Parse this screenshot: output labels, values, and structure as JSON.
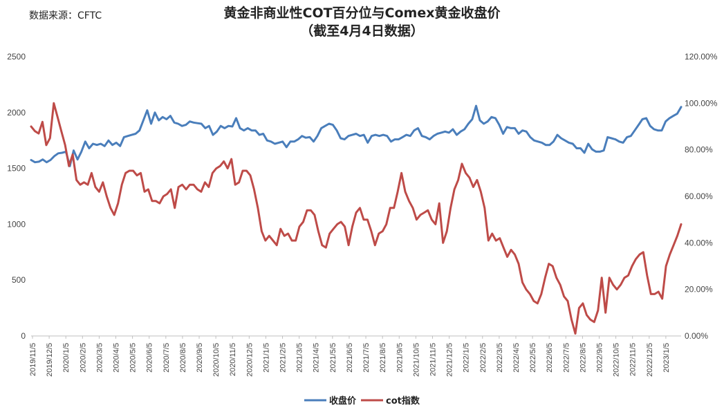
{
  "source": "数据来源：CFTC",
  "title_line1": "黄金非商业性COT百分位与Comex黄金收盘价",
  "title_line2": "（截至4月4日数据）",
  "chart_data": {
    "type": "line",
    "title": "黄金非商业性COT百分位与Comex黄金收盘价",
    "subtitle": "（截至4月4日数据）",
    "y_left": {
      "min": 0,
      "max": 2500,
      "ticks": [
        0,
        500,
        1000,
        1500,
        2000,
        2500
      ]
    },
    "y_right": {
      "min": 0,
      "max": 1.2,
      "ticks": [
        "0.00%",
        "20.00%",
        "40.00%",
        "60.00%",
        "80.00%",
        "100.00%",
        "120.00%"
      ]
    },
    "x_ticks": [
      "2019/11/5",
      "2019/12/5",
      "2020/1/5",
      "2020/2/5",
      "2020/3/5",
      "2020/4/5",
      "2020/5/5",
      "2020/6/5",
      "2020/7/5",
      "2020/8/5",
      "2020/9/5",
      "2020/10/5",
      "2020/11/5",
      "2020/12/5",
      "2021/1/5",
      "2021/2/5",
      "2021/3/5",
      "2021/4/5",
      "2021/5/5",
      "2021/6/5",
      "2021/7/5",
      "2021/8/5",
      "2021/9/5",
      "2021/10/5",
      "2021/11/5",
      "2021/12/5",
      "2022/1/5",
      "2022/2/5",
      "2022/3/5",
      "2022/4/5",
      "2022/5/5",
      "2022/6/5",
      "2022/7/5",
      "2022/8/5",
      "2022/9/5",
      "2022/10/5",
      "2022/11/5",
      "2022/12/5",
      "2023/1/5"
    ],
    "grid": false,
    "legend_position": "bottom",
    "colors": {
      "price": "#4a7ebb",
      "cot": "#be4b48"
    },
    "series": [
      {
        "name": "收盘价",
        "axis": "left",
        "values": [
          1575,
          1555,
          1560,
          1580,
          1555,
          1575,
          1610,
          1635,
          1640,
          1650,
          1520,
          1660,
          1580,
          1650,
          1740,
          1680,
          1720,
          1710,
          1720,
          1700,
          1750,
          1710,
          1730,
          1700,
          1780,
          1790,
          1800,
          1810,
          1840,
          1930,
          2020,
          1900,
          2000,
          1930,
          1960,
          1940,
          1970,
          1910,
          1900,
          1880,
          1890,
          1920,
          1910,
          1905,
          1900,
          1860,
          1880,
          1800,
          1830,
          1880,
          1860,
          1880,
          1875,
          1950,
          1860,
          1840,
          1860,
          1840,
          1840,
          1800,
          1810,
          1750,
          1740,
          1720,
          1730,
          1740,
          1690,
          1740,
          1740,
          1760,
          1790,
          1775,
          1780,
          1740,
          1790,
          1860,
          1880,
          1900,
          1890,
          1840,
          1770,
          1760,
          1790,
          1800,
          1810,
          1790,
          1800,
          1730,
          1790,
          1800,
          1790,
          1800,
          1790,
          1740,
          1760,
          1760,
          1780,
          1800,
          1790,
          1840,
          1860,
          1790,
          1780,
          1760,
          1790,
          1810,
          1820,
          1830,
          1820,
          1850,
          1800,
          1830,
          1850,
          1900,
          1940,
          2060,
          1930,
          1900,
          1920,
          1960,
          1950,
          1890,
          1810,
          1870,
          1860,
          1860,
          1810,
          1840,
          1830,
          1780,
          1750,
          1740,
          1730,
          1710,
          1710,
          1740,
          1800,
          1770,
          1750,
          1730,
          1720,
          1680,
          1680,
          1640,
          1720,
          1670,
          1650,
          1650,
          1660,
          1780,
          1770,
          1760,
          1740,
          1730,
          1780,
          1790,
          1840,
          1890,
          1940,
          1950,
          1880,
          1850,
          1840,
          1840,
          1920,
          1950,
          1970,
          1990,
          2050
        ]
      },
      {
        "name": "cot指数",
        "axis": "right",
        "values": [
          0.9,
          0.88,
          0.87,
          0.92,
          0.82,
          0.85,
          1.0,
          0.94,
          0.88,
          0.82,
          0.73,
          0.78,
          0.67,
          0.65,
          0.66,
          0.65,
          0.7,
          0.64,
          0.62,
          0.66,
          0.6,
          0.55,
          0.52,
          0.57,
          0.65,
          0.7,
          0.71,
          0.71,
          0.69,
          0.7,
          0.62,
          0.63,
          0.58,
          0.58,
          0.57,
          0.6,
          0.61,
          0.63,
          0.55,
          0.64,
          0.65,
          0.63,
          0.65,
          0.65,
          0.63,
          0.62,
          0.66,
          0.64,
          0.7,
          0.72,
          0.73,
          0.75,
          0.72,
          0.76,
          0.65,
          0.66,
          0.71,
          0.71,
          0.69,
          0.63,
          0.55,
          0.45,
          0.41,
          0.43,
          0.41,
          0.39,
          0.46,
          0.43,
          0.44,
          0.41,
          0.41,
          0.47,
          0.49,
          0.54,
          0.54,
          0.52,
          0.45,
          0.39,
          0.38,
          0.44,
          0.46,
          0.48,
          0.49,
          0.47,
          0.39,
          0.47,
          0.53,
          0.55,
          0.5,
          0.5,
          0.45,
          0.39,
          0.44,
          0.45,
          0.48,
          0.55,
          0.55,
          0.62,
          0.7,
          0.62,
          0.58,
          0.55,
          0.5,
          0.52,
          0.53,
          0.54,
          0.5,
          0.48,
          0.57,
          0.4,
          0.45,
          0.55,
          0.63,
          0.67,
          0.74,
          0.7,
          0.68,
          0.64,
          0.67,
          0.62,
          0.55,
          0.41,
          0.44,
          0.41,
          0.42,
          0.38,
          0.34,
          0.37,
          0.35,
          0.31,
          0.23,
          0.2,
          0.18,
          0.15,
          0.14,
          0.18,
          0.25,
          0.31,
          0.3,
          0.25,
          0.22,
          0.17,
          0.15,
          0.07,
          0.01,
          0.12,
          0.14,
          0.09,
          0.07,
          0.06,
          0.11,
          0.25,
          0.1,
          0.25,
          0.22,
          0.2,
          0.22,
          0.25,
          0.26,
          0.3,
          0.33,
          0.35,
          0.36,
          0.26,
          0.18,
          0.18,
          0.19,
          0.16,
          0.3,
          0.35,
          0.39,
          0.43,
          0.48
        ]
      }
    ]
  }
}
